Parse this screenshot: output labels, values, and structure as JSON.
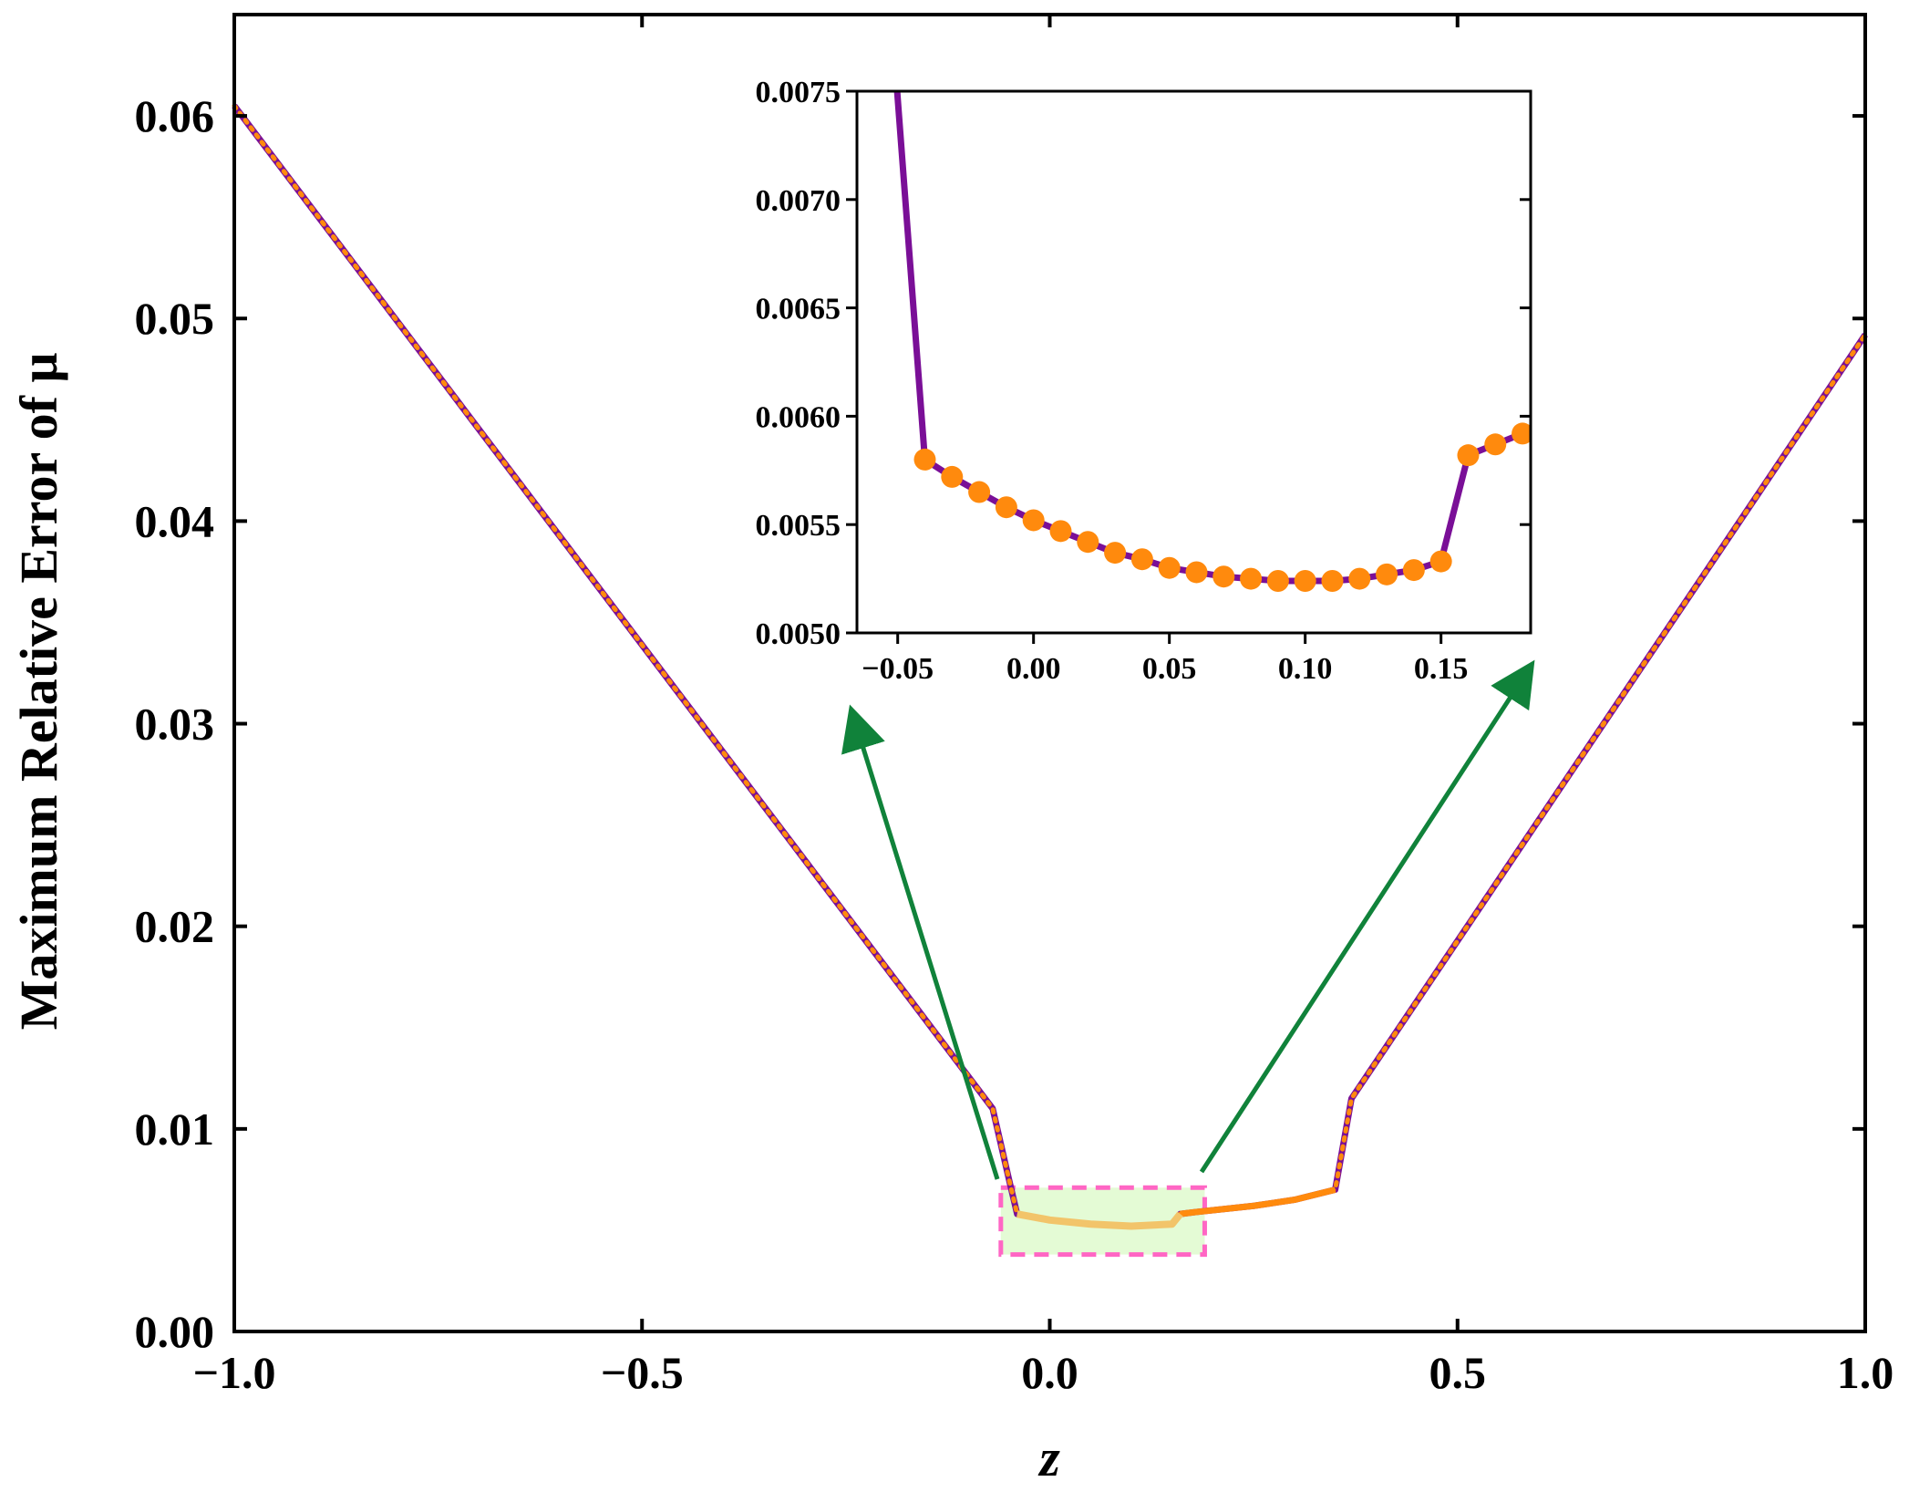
{
  "colors": {
    "line": "#7a0f97",
    "markers": "#ff8a0d",
    "arrows": "#10823a",
    "highlight_fill": "#e4fbd5",
    "highlight_border": "#ff66c4",
    "highlight_line": "#f2c46a"
  },
  "chart_data": [
    {
      "type": "line",
      "title": "",
      "xlabel": "z",
      "ylabel": "Maximum Relative Error of μ",
      "xlim": [
        -1.0,
        1.0
      ],
      "ylim": [
        0.0,
        0.065
      ],
      "x_ticks": [
        -1.0,
        -0.5,
        0.0,
        0.5,
        1.0
      ],
      "x_tick_labels": [
        "−1.0",
        "−0.5",
        "0.0",
        "0.5",
        "1.0"
      ],
      "y_ticks": [
        0.0,
        0.01,
        0.02,
        0.03,
        0.04,
        0.05,
        0.06
      ],
      "y_tick_labels": [
        "0.00",
        "0.01",
        "0.02",
        "0.03",
        "0.04",
        "0.05",
        "0.06"
      ],
      "grid": false,
      "series": [
        {
          "style": "solid purple line",
          "x": [
            -1.0,
            -0.07,
            -0.05,
            -0.04,
            0.0,
            0.05,
            0.1,
            0.15,
            0.16,
            0.18,
            0.25,
            0.3,
            0.35,
            0.37,
            1.0
          ],
          "y": [
            0.0605,
            0.011,
            0.0075,
            0.0058,
            0.0055,
            0.0053,
            0.0052,
            0.0053,
            0.0058,
            0.0059,
            0.0062,
            0.0065,
            0.007,
            0.0115,
            0.0492
          ]
        },
        {
          "style": "orange dots",
          "x": [
            -1.0,
            -0.07,
            -0.05,
            -0.04,
            0.0,
            0.05,
            0.1,
            0.15,
            0.16,
            0.18,
            0.25,
            0.3,
            0.35,
            0.37,
            1.0
          ],
          "y": [
            0.0605,
            0.011,
            0.0075,
            0.0058,
            0.0055,
            0.0053,
            0.0052,
            0.0053,
            0.0058,
            0.0059,
            0.0062,
            0.0065,
            0.007,
            0.0115,
            0.0492
          ]
        }
      ],
      "highlight_region": {
        "x": [
          -0.06,
          0.19
        ],
        "y": [
          0.0038,
          0.0071
        ]
      }
    },
    {
      "type": "line",
      "title": "",
      "xlabel": "",
      "ylabel": "",
      "xlim": [
        -0.065,
        0.183
      ],
      "ylim": [
        0.005,
        0.0075
      ],
      "x_ticks": [
        -0.05,
        0.0,
        0.05,
        0.1,
        0.15
      ],
      "x_tick_labels": [
        "−0.05",
        "0.00",
        "0.05",
        "0.10",
        "0.15"
      ],
      "y_ticks": [
        0.005,
        0.0055,
        0.006,
        0.0065,
        0.007,
        0.0075
      ],
      "y_tick_labels": [
        "0.0050",
        "0.0055",
        "0.0060",
        "0.0065",
        "0.0070",
        "0.0075"
      ],
      "grid": false,
      "series": [
        {
          "style": "solid purple line",
          "x": [
            -0.052,
            -0.04
          ],
          "y": [
            0.0078,
            0.0058
          ]
        },
        {
          "style": "orange circles on purple line",
          "x": [
            -0.04,
            -0.03,
            -0.02,
            -0.01,
            0.0,
            0.01,
            0.02,
            0.03,
            0.04,
            0.05,
            0.06,
            0.07,
            0.08,
            0.09,
            0.1,
            0.11,
            0.12,
            0.13,
            0.14,
            0.15,
            0.16,
            0.17,
            0.18
          ],
          "y": [
            0.0058,
            0.00572,
            0.00565,
            0.00558,
            0.00552,
            0.00547,
            0.00542,
            0.00537,
            0.00534,
            0.0053,
            0.00528,
            0.00526,
            0.00525,
            0.00524,
            0.00524,
            0.00524,
            0.00525,
            0.00527,
            0.00529,
            0.00533,
            0.00582,
            0.00587,
            0.00592
          ]
        }
      ]
    }
  ]
}
